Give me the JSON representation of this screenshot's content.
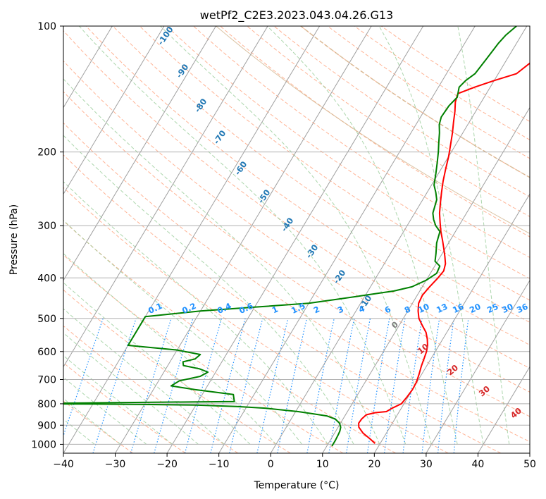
{
  "chart_data": {
    "type": "line",
    "subtype": "skew-t log-p",
    "title": "wetPf2_C2E3.2023.043.04.26.G13",
    "xlabel": "Temperature (°C)",
    "ylabel": "Pressure (hPa)",
    "xlim": [
      -40,
      50
    ],
    "ylim": [
      1050,
      100
    ],
    "y_scale": "log",
    "grid": true,
    "x_ticks": [
      -40,
      -30,
      -20,
      -10,
      0,
      10,
      20,
      30,
      40,
      50
    ],
    "y_ticks": [
      1000,
      900,
      800,
      700,
      600,
      500,
      400,
      300,
      200,
      100
    ],
    "colors": {
      "temperature": "#ff0000",
      "dewpoint": "#008000",
      "grid": "#b0b0b0",
      "isotherm": "#a0a0a0",
      "dry_adiabat": "#ffa07a",
      "moist_adiabat": "#90c890",
      "mixing_ratio": "#1e90ff",
      "mixing_ratio_label": "#1e90ff",
      "dry_adiabat_label": "#1f77b4",
      "moist_adiabat_label": "#d62728",
      "extra_curve": "#d2b48c"
    },
    "mixing_ratio_labels": [
      "0.1",
      "0.2",
      "0.4",
      "0.6",
      "1",
      "1.5",
      "2",
      "3",
      "4",
      "6",
      "8",
      "10",
      "13",
      "16",
      "20",
      "25",
      "30",
      "36"
    ],
    "dry_adiabat_labels": [
      "-100",
      "-90",
      "-80",
      "-70",
      "-60",
      "-50",
      "-40",
      "-30",
      "-20",
      "-10"
    ],
    "moist_adiabat_labels": [
      "0",
      "10",
      "20",
      "30",
      "40"
    ],
    "series": [
      {
        "x": [
          19.0,
          17.5,
          15.5,
          14.0,
          13.5,
          13.6,
          14.0,
          15.5,
          17.5,
          18.2,
          19.5,
          19.8,
          20.0,
          19.9,
          19.5,
          19.0,
          18.6,
          18.3,
          17.8,
          17.0,
          16.0,
          14.5,
          13.0,
          12.0,
          11.2,
          11.0,
          11.4,
          12.0,
          12.3,
          11.8,
          10.8,
          9.7,
          8.5,
          7.2,
          6.0,
          4.8,
          3.8,
          2.8,
          1.8,
          0.9,
          0.0,
          -1.0,
          -2.0,
          -3.0,
          -4.0,
          -5.0,
          -5.5,
          -3.0,
          0.0,
          3.5,
          5.0,
          6.0,
          7.5,
          10.0,
          12.0
        ],
        "y": [
          995,
          970,
          940,
          910,
          890,
          870,
          850,
          840,
          835,
          820,
          800,
          770,
          740,
          710,
          680,
          650,
          620,
          600,
          580,
          560,
          540,
          520,
          500,
          480,
          460,
          440,
          420,
          400,
          385,
          370,
          355,
          340,
          325,
          310,
          295,
          280,
          265,
          250,
          235,
          220,
          205,
          192,
          180,
          170,
          160,
          152,
          145,
          140,
          135,
          130,
          122,
          115,
          110,
          105,
          100
        ]
      },
      {
        "x": [
          11.0,
          11.0,
          10.9,
          10.8,
          10.5,
          9.8,
          8.5,
          6.5,
          3.5,
          0.5,
          -6.0,
          -12.0,
          -20.0,
          -30.0,
          -40.0,
          -60.0,
          -50.0,
          -13.0,
          -13.5,
          -14.0,
          -18.0,
          -22.0,
          -27.0,
          -26.0,
          -22.5,
          -21.5,
          -23.5,
          -27.0,
          -27.5,
          -25.5,
          -25.0,
          -30.0,
          -40.0,
          -40.0,
          -30.0,
          -20.0,
          -10.0,
          -5.0,
          0.0,
          5.0,
          8.0,
          10.0,
          11.2,
          11.0,
          9.5,
          8.8,
          7.7,
          7.0,
          5.5,
          4.4,
          3.5,
          2.7,
          1.7,
          0.5,
          -0.5,
          -1.5,
          -2.5,
          -3.5,
          -4.5,
          -5.5,
          -6.0,
          -5.8,
          -5.2,
          -6.0,
          -5.5,
          -4.5,
          -4.0,
          -3.5,
          -3.0,
          -2.0
        ],
        "y": [
          1010,
          980,
          950,
          930,
          910,
          890,
          870,
          855,
          845,
          835,
          820,
          812,
          806,
          803,
          801,
          800,
          798,
          790,
          775,
          760,
          750,
          740,
          725,
          705,
          688,
          672,
          660,
          648,
          635,
          625,
          610,
          595,
          580,
          495,
          480,
          470,
          460,
          450,
          440,
          430,
          420,
          405,
          390,
          375,
          365,
          350,
          330,
          310,
          300,
          290,
          280,
          260,
          250,
          240,
          225,
          212,
          200,
          190,
          180,
          172,
          165,
          155,
          148,
          140,
          135,
          130,
          120,
          110,
          105,
          100
        ]
      }
    ]
  }
}
